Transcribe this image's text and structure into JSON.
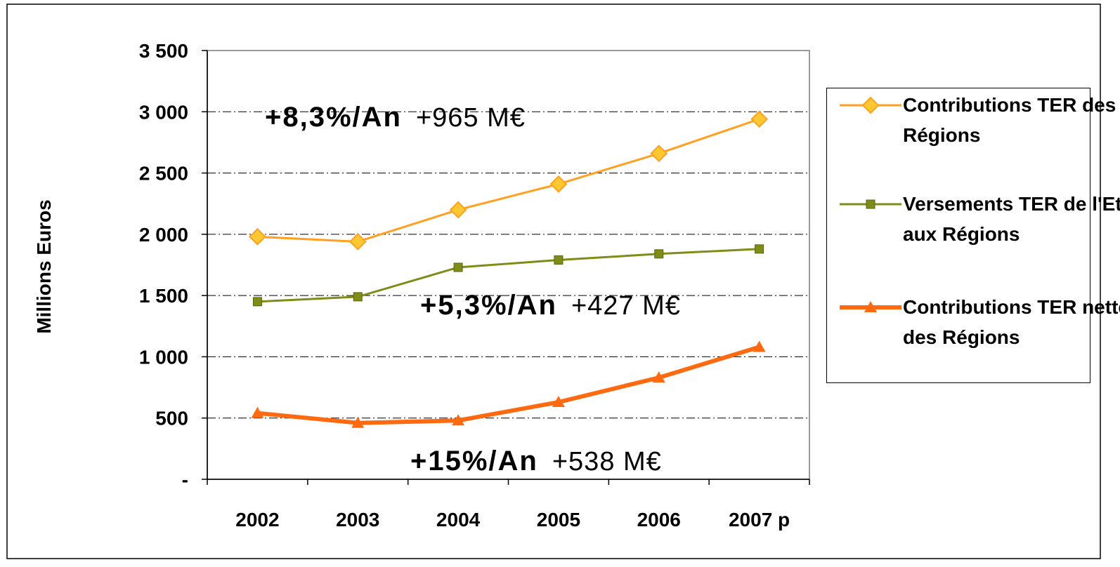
{
  "chart_data": {
    "type": "line",
    "y_label": "Millions Euros",
    "categories": [
      "2002",
      "2003",
      "2004",
      "2005",
      "2006",
      "2007 p"
    ],
    "series": [
      {
        "name": "Contributions TER des Régions",
        "color": "#FFA020",
        "marker": "diamond",
        "values": [
          1980,
          1940,
          2200,
          2410,
          2660,
          2940
        ]
      },
      {
        "name": "Versements TER de l'Etat aux Régions",
        "color": "#808C18",
        "marker": "square",
        "values": [
          1450,
          1490,
          1730,
          1790,
          1840,
          1880
        ]
      },
      {
        "name": "Contributions TER nettes des Régions",
        "color": "#FF6A10",
        "marker": "triangle",
        "values": [
          540,
          460,
          480,
          630,
          830,
          1080
        ]
      }
    ],
    "ylim": [
      0,
      3500
    ],
    "yticks": [
      {
        "value": 0,
        "label": "-"
      },
      500,
      {
        "value": 1000,
        "label": "1 000"
      },
      {
        "value": 1500,
        "label": "1 500"
      },
      {
        "value": 2000,
        "label": "2 000"
      },
      {
        "value": 2500,
        "label": "2 500"
      },
      {
        "value": 3000,
        "label": "3 000"
      },
      {
        "value": 3500,
        "label": "3 500"
      }
    ],
    "grid": true,
    "legend": "right",
    "annotations": [
      {
        "rate": "+8,3%/An",
        "amount": "+965 M€"
      },
      {
        "rate": "+5,3%/An",
        "amount": "+427 M€"
      },
      {
        "rate": "+15%/An",
        "amount": "+538 M€"
      }
    ]
  }
}
